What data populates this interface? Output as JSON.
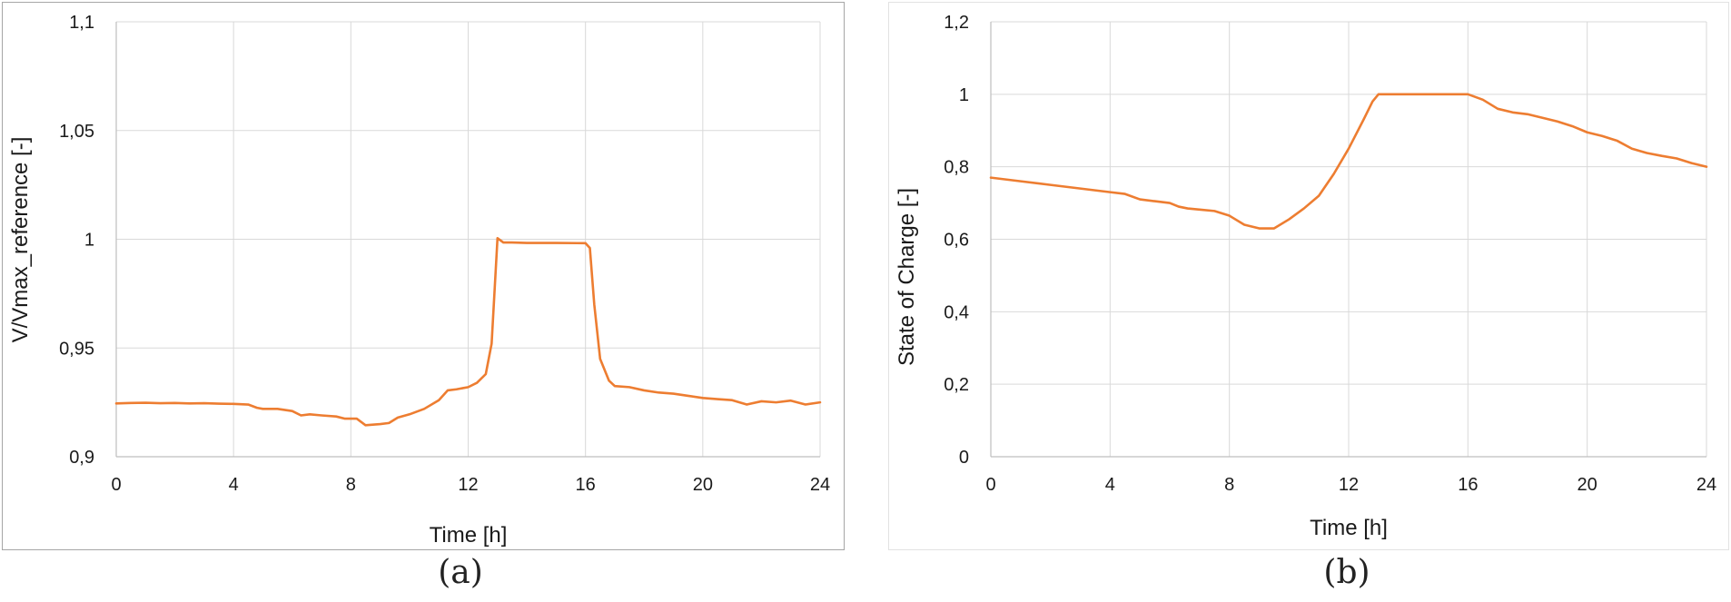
{
  "captions": {
    "a": "(a)",
    "b": "(b)"
  },
  "colors": {
    "series": "#ed7d31",
    "grid": "#d9d9d9",
    "axis": "#bfbfbf",
    "text": "#1a1a1a"
  },
  "chart_data": [
    {
      "type": "line",
      "xlabel": "Time [h]",
      "ylabel": "V/Vmax_reference [-]",
      "xlim": [
        0,
        24
      ],
      "ylim": [
        0.9,
        1.1
      ],
      "x_ticks": [
        0,
        4,
        8,
        12,
        16,
        20,
        24
      ],
      "x_tick_labels": [
        "0",
        "4",
        "8",
        "12",
        "16",
        "20",
        "24"
      ],
      "y_ticks": [
        0.9,
        0.95,
        1.0,
        1.05,
        1.1
      ],
      "y_tick_labels": [
        "0,9",
        "0,95",
        "1",
        "1,05",
        "1,1"
      ],
      "grid": true,
      "series": [
        {
          "x": [
            0,
            0.5,
            1,
            1.5,
            2,
            2.5,
            3,
            3.5,
            4,
            4.5,
            4.8,
            5,
            5.5,
            6,
            6.3,
            6.6,
            7,
            7.5,
            7.8,
            8.2,
            8.5,
            9,
            9.3,
            9.6,
            10,
            10.5,
            11,
            11.3,
            11.6,
            12,
            12.3,
            12.6,
            12.8,
            13.0,
            13.2,
            13.5,
            14,
            15,
            16,
            16.15,
            16.3,
            16.5,
            16.8,
            17,
            17.5,
            18,
            18.5,
            19,
            19.5,
            20,
            20.5,
            21,
            21.5,
            22,
            22.5,
            23,
            23.5,
            24
          ],
          "y": [
            0.9245,
            0.9247,
            0.9248,
            0.9246,
            0.9247,
            0.9245,
            0.9246,
            0.9244,
            0.9243,
            0.924,
            0.9225,
            0.922,
            0.922,
            0.921,
            0.919,
            0.9195,
            0.919,
            0.9185,
            0.9175,
            0.9175,
            0.9145,
            0.915,
            0.9155,
            0.918,
            0.9195,
            0.922,
            0.926,
            0.9305,
            0.931,
            0.932,
            0.934,
            0.938,
            0.952,
            1.0005,
            0.9985,
            0.9985,
            0.9983,
            0.9983,
            0.9982,
            0.996,
            0.97,
            0.945,
            0.935,
            0.9325,
            0.932,
            0.9305,
            0.9295,
            0.929,
            0.928,
            0.927,
            0.9265,
            0.926,
            0.924,
            0.9255,
            0.925,
            0.9258,
            0.924,
            0.925
          ]
        }
      ]
    },
    {
      "type": "line",
      "xlabel": "Time [h]",
      "ylabel": "State of Charge [-]",
      "xlim": [
        0,
        24
      ],
      "ylim": [
        0,
        1.2
      ],
      "x_ticks": [
        0,
        4,
        8,
        12,
        16,
        20,
        24
      ],
      "x_tick_labels": [
        "0",
        "4",
        "8",
        "12",
        "16",
        "20",
        "24"
      ],
      "y_ticks": [
        0,
        0.2,
        0.4,
        0.6,
        0.8,
        1.0,
        1.2
      ],
      "y_tick_labels": [
        "0",
        "0,2",
        "0,4",
        "0,6",
        "0,8",
        "1",
        "1,2"
      ],
      "grid": true,
      "series": [
        {
          "x": [
            0,
            1,
            2,
            3,
            4,
            4.5,
            5,
            5.5,
            6,
            6.3,
            6.6,
            7,
            7.5,
            8,
            8.5,
            9,
            9.5,
            10,
            10.5,
            11,
            11.5,
            12,
            12.5,
            12.8,
            13,
            13.2,
            13.5,
            14,
            15,
            16,
            16.5,
            17,
            17.5,
            18,
            18.5,
            19,
            19.5,
            20,
            20.5,
            21,
            21.5,
            22,
            22.5,
            23,
            23.5,
            24
          ],
          "y": [
            0.77,
            0.76,
            0.75,
            0.74,
            0.73,
            0.725,
            0.71,
            0.705,
            0.7,
            0.69,
            0.685,
            0.682,
            0.678,
            0.665,
            0.64,
            0.63,
            0.63,
            0.655,
            0.685,
            0.72,
            0.78,
            0.85,
            0.93,
            0.98,
            1.0,
            1.0,
            1.0,
            1.0,
            1.0,
            1.0,
            0.985,
            0.96,
            0.95,
            0.945,
            0.935,
            0.925,
            0.912,
            0.895,
            0.885,
            0.872,
            0.85,
            0.838,
            0.83,
            0.823,
            0.81,
            0.8
          ]
        }
      ]
    }
  ]
}
